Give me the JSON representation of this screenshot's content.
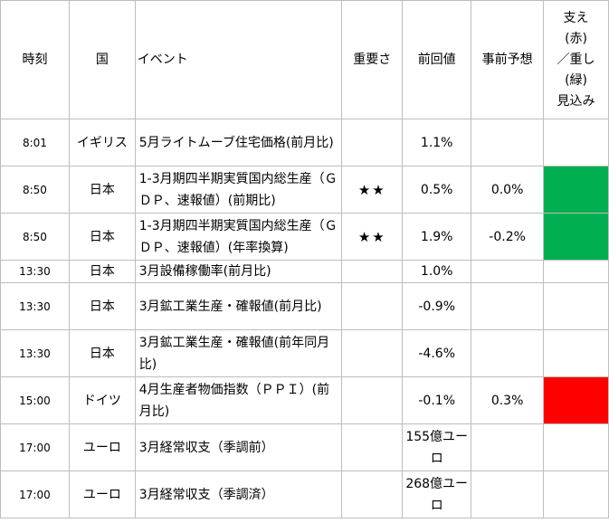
{
  "header": {
    "time": "時刻",
    "country": "国",
    "event": "イベント",
    "importance": "重要さ",
    "previous": "前回値",
    "forecast": "事前予想",
    "support_lines": [
      "支え",
      "(赤)",
      "／重し",
      "(緑)",
      "見込み"
    ]
  },
  "colors": {
    "green": "#00b050",
    "red": "#ff0000",
    "border": "#bdbdbd"
  },
  "rows": [
    {
      "time": "8:01",
      "country": "イギリス",
      "event": "5月ライトムーブ住宅価格(前月比)",
      "importance": "",
      "previous": "1.1%",
      "forecast": "",
      "support": "none"
    },
    {
      "time": "8:50",
      "country": "日本",
      "event": "1-3月期四半期実質国内総生産（ＧＤＰ、速報値）(前期比)",
      "importance": "★★",
      "previous": "0.5%",
      "forecast": "0.0%",
      "support": "green"
    },
    {
      "time": "8:50",
      "country": "日本",
      "event": "1-3月期四半期実質国内総生産（ＧＤＰ、速報値）(年率換算)",
      "importance": "★★",
      "previous": "1.9%",
      "forecast": "-0.2%",
      "support": "green"
    },
    {
      "time": "13:30",
      "country": "日本",
      "event": "3月設備稼働率(前月比)",
      "importance": "",
      "previous": "1.0%",
      "forecast": "",
      "support": "none"
    },
    {
      "time": "13:30",
      "country": "日本",
      "event": "3月鉱工業生産・確報値(前月比)",
      "importance": "",
      "previous": "-0.9%",
      "forecast": "",
      "support": "none"
    },
    {
      "time": "13:30",
      "country": "日本",
      "event": "3月鉱工業生産・確報値(前年同月比)",
      "importance": "",
      "previous": "-4.6%",
      "forecast": "",
      "support": "none"
    },
    {
      "time": "15:00",
      "country": "ドイツ",
      "event": "4月生産者物価指数（ＰＰＩ）(前月比)",
      "importance": "",
      "previous": "-0.1%",
      "forecast": "0.3%",
      "support": "red"
    },
    {
      "time": "17:00",
      "country": "ユーロ",
      "event": "3月経常収支（季調前）",
      "importance": "",
      "previous": "155億ユーロ",
      "forecast": "",
      "support": "none"
    },
    {
      "time": "17:00",
      "country": "ユーロ",
      "event": "3月経常収支（季調済）",
      "importance": "",
      "previous": "268億ユーロ",
      "forecast": "",
      "support": "none"
    }
  ]
}
